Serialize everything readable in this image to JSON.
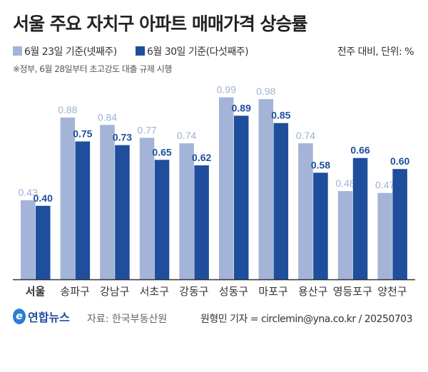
{
  "chart_data": {
    "type": "bar",
    "title": "서울 주요 자치구 아파트 매매가격 상승률",
    "categories": [
      "서울",
      "송파구",
      "강남구",
      "서초구",
      "강동구",
      "성동구",
      "마포구",
      "용산구",
      "영등포구",
      "양천구"
    ],
    "series": [
      {
        "name": "6월 23일 기준(넷째주)",
        "color": "#a3b4d8",
        "values": [
          0.43,
          0.88,
          0.84,
          0.77,
          0.74,
          0.99,
          0.98,
          0.74,
          0.48,
          0.47
        ]
      },
      {
        "name": "6월 30일 기준(다섯째주)",
        "color": "#1f4e9c",
        "values": [
          0.4,
          0.75,
          0.73,
          0.65,
          0.62,
          0.89,
          0.85,
          0.58,
          0.66,
          0.6
        ]
      }
    ],
    "ylim": [
      0,
      1.0
    ],
    "grid": false,
    "legend": "top-left",
    "unit_note": "전주 대비, 단위: %",
    "annotation": "※정부, 6월 28일부터 초고강도 대출 규제 시행"
  },
  "footer": {
    "logo": "연합뉴스",
    "source": "자료: 한국부동산원",
    "credit": "원형민 기자 = circlemin@yna.co.kr / 20250703"
  }
}
